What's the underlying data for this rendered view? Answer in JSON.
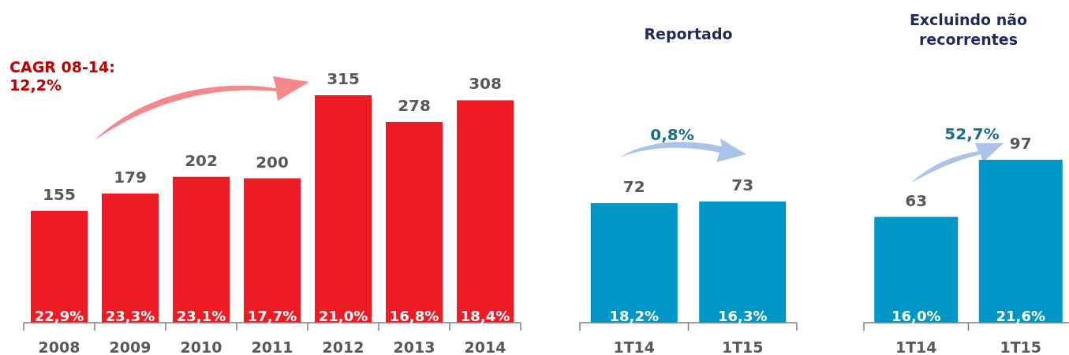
{
  "chart_data": [
    {
      "type": "bar",
      "categories": [
        "2008",
        "2009",
        "2010",
        "2011",
        "2012",
        "2013",
        "2014"
      ],
      "values": [
        155,
        179,
        202,
        200,
        315,
        278,
        308
      ],
      "color": "#ed1c24",
      "data_labels": true,
      "annotations": [
        "CAGR 08-14:\n12,2%",
        "22,9%",
        "23,3%",
        "23,1%",
        "17,7%",
        "21,0%",
        "16,8%",
        "18,4%"
      ]
    },
    {
      "type": "bar",
      "title": "Reportado",
      "categories": [
        "1T14",
        "1T15"
      ],
      "values": [
        72,
        73
      ],
      "color": "#0097c8",
      "data_labels": true,
      "annotations": [
        "0,8%",
        "18,2%",
        "16,3%"
      ]
    },
    {
      "type": "bar",
      "title": "Excluindo não recorrentes",
      "categories": [
        "1T14",
        "1T15"
      ],
      "values": [
        63,
        97
      ],
      "color": "#0097c8",
      "data_labels": true,
      "annotations": [
        "52,7%",
        "16,0%",
        "21,6%"
      ]
    }
  ]
}
